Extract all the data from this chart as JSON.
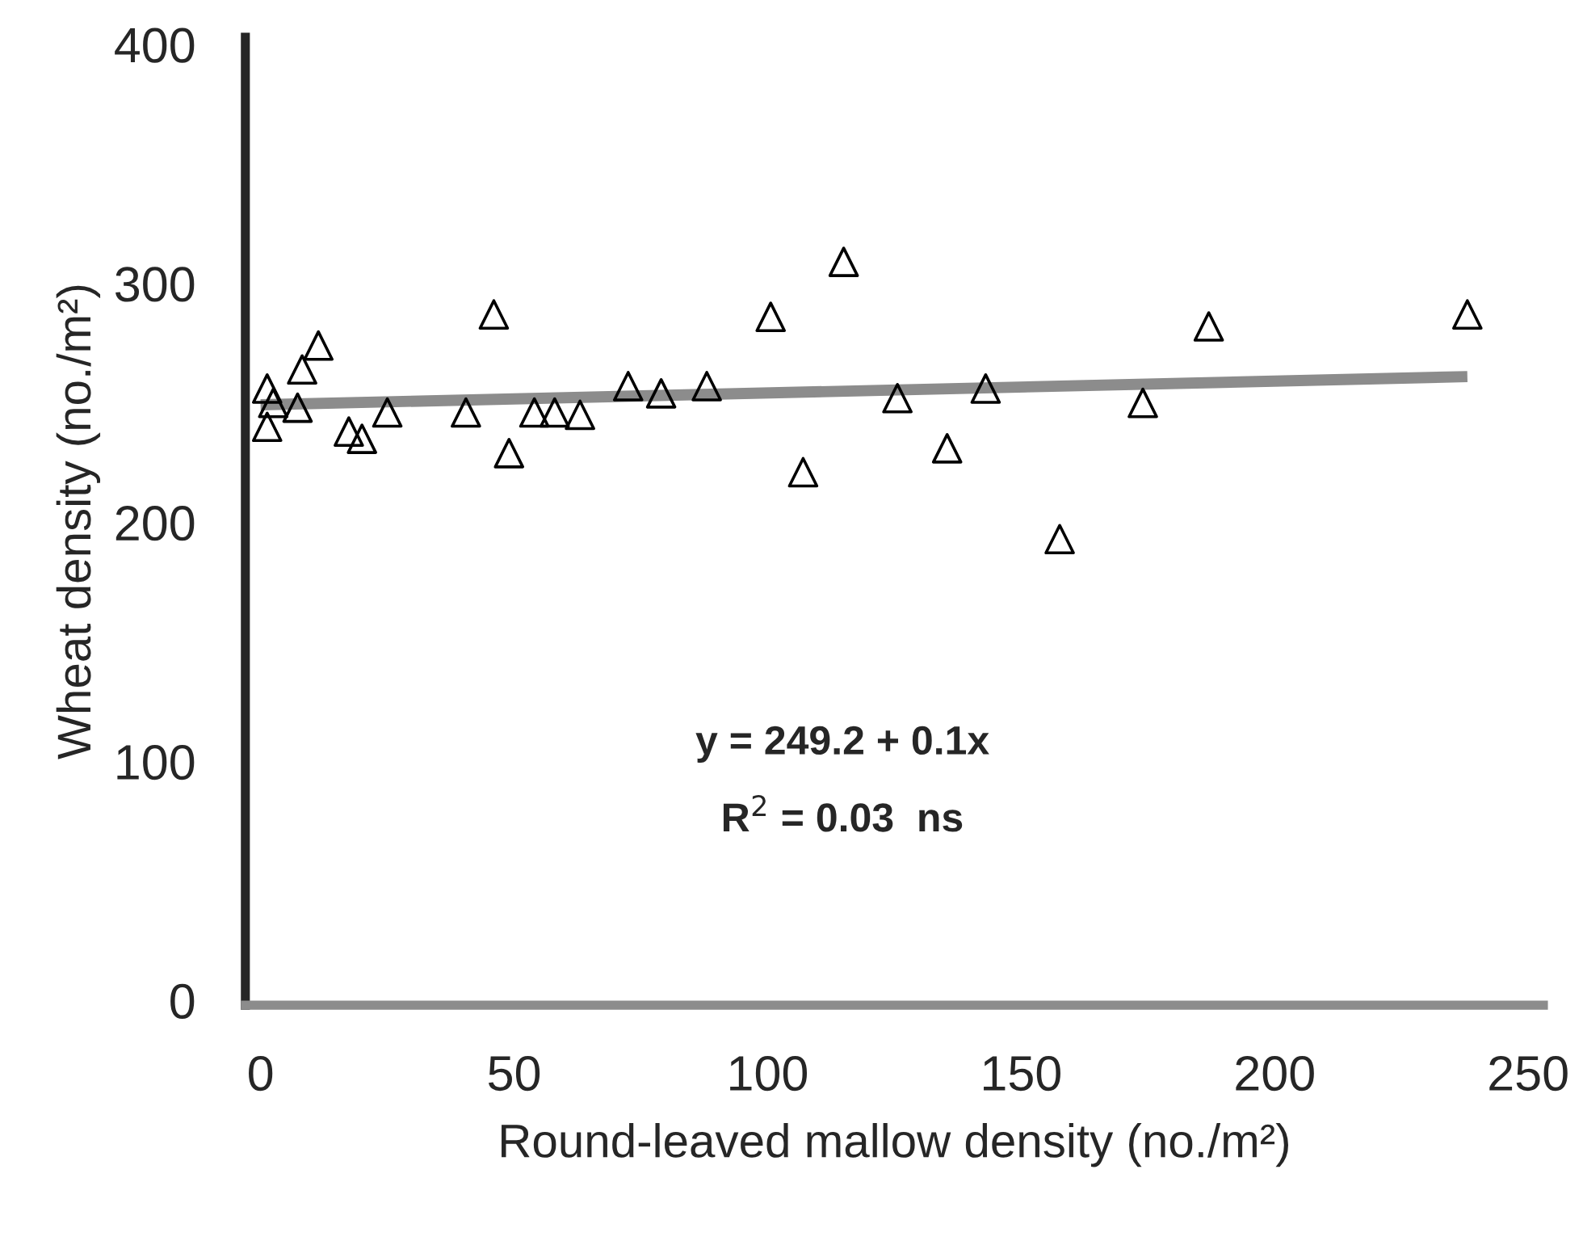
{
  "chart_data": {
    "type": "scatter",
    "xlabel": "Round-leaved mallow density (no./m²)",
    "ylabel": "Wheat density (no./m²)",
    "xlim": [
      -3,
      253
    ],
    "ylim": [
      -2,
      403
    ],
    "xticks": [
      0,
      50,
      100,
      150,
      200,
      250
    ],
    "yticks": [
      0,
      100,
      200,
      300,
      400
    ],
    "grid": false,
    "series": [
      {
        "marker": "triangle",
        "color": "#000000",
        "x": [
          1.3,
          1.3,
          2.5,
          8.2,
          11.4,
          7.3,
          17.4,
          20,
          25,
          40.5,
          46,
          49,
          54,
          58,
          63,
          72.5,
          79,
          88,
          100.6,
          107,
          115,
          125.6,
          135.4,
          143,
          157.6,
          174,
          187,
          238
        ],
        "values": [
          256,
          240,
          250,
          264,
          274,
          248,
          238,
          235,
          246,
          246,
          287,
          229,
          246,
          246,
          245,
          257,
          254,
          257,
          286,
          221,
          309,
          252,
          231,
          256,
          193,
          250,
          282,
          287
        ]
      },
      {
        "type": "line",
        "color": "#8c8c8c",
        "x": [
          0,
          238
        ],
        "values": [
          249.2,
          261
        ]
      }
    ],
    "annotations": [
      {
        "text": "y = 249.2 + 0.1x"
      },
      {
        "text": "R$^{2}$ = 0.03  ns"
      }
    ]
  }
}
